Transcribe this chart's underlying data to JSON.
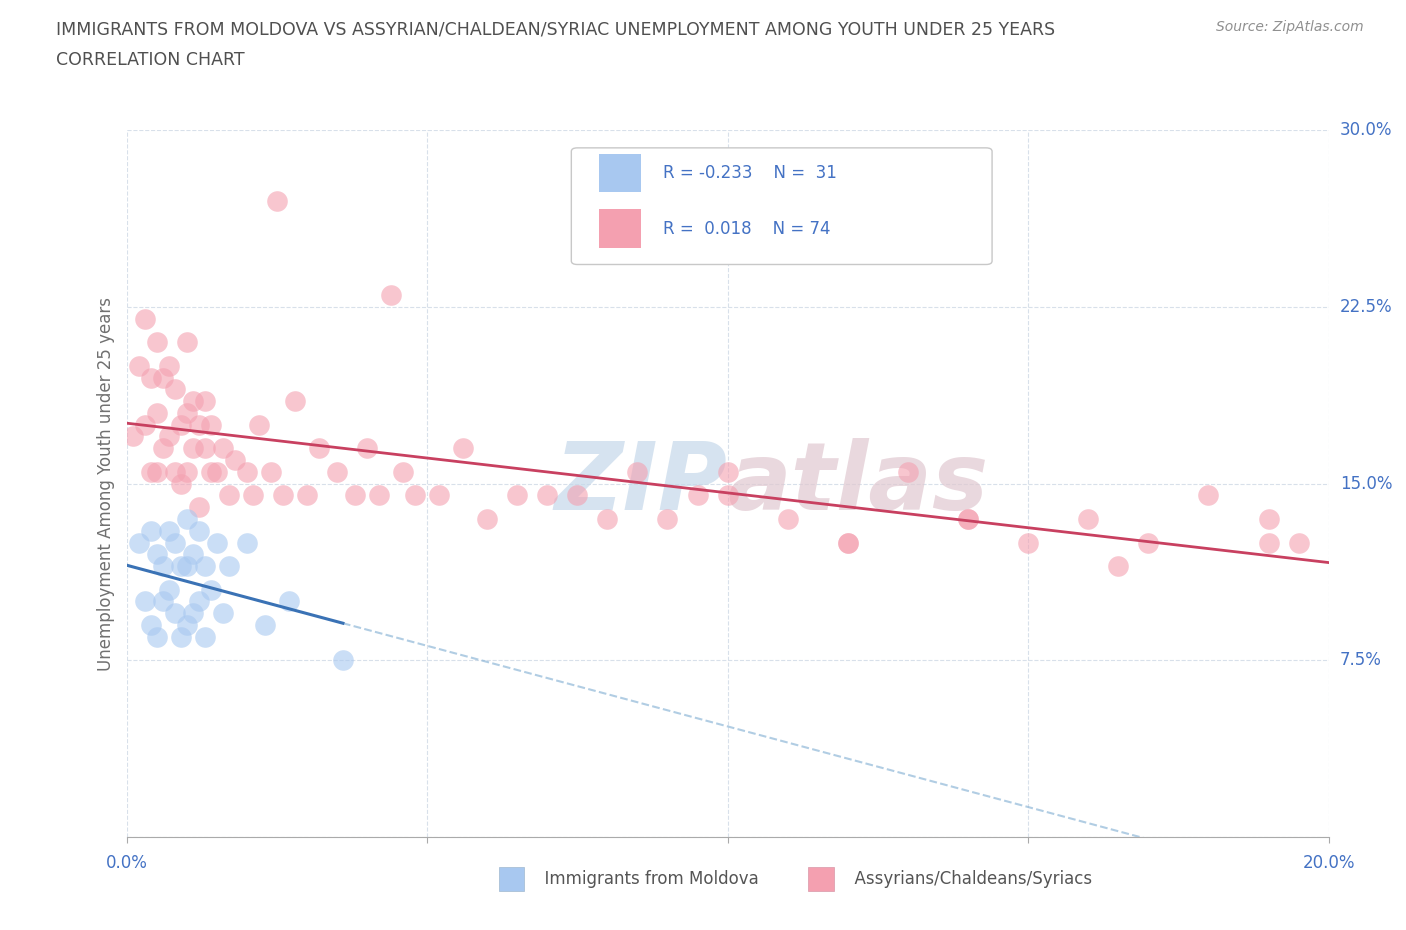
{
  "title_line1": "IMMIGRANTS FROM MOLDOVA VS ASSYRIAN/CHALDEAN/SYRIAC UNEMPLOYMENT AMONG YOUTH UNDER 25 YEARS",
  "title_line2": "CORRELATION CHART",
  "source_text": "Source: ZipAtlas.com",
  "ylabel": "Unemployment Among Youth under 25 years",
  "xlim": [
    0.0,
    0.2
  ],
  "ylim": [
    0.0,
    0.3
  ],
  "xticks": [
    0.0,
    0.05,
    0.1,
    0.15,
    0.2
  ],
  "yticks": [
    0.0,
    0.075,
    0.15,
    0.225,
    0.3
  ],
  "color_moldova": "#a8c8f0",
  "color_assyrian": "#f4a0b0",
  "color_moldova_line": "#3a72b5",
  "color_assyrian_line": "#c84060",
  "color_moldova_dash": "#90b8d8",
  "title_color": "#505050",
  "tick_color": "#4472c4",
  "grid_color": "#e0e8f0",
  "source_color": "#909090",
  "ylabel_color": "#707070",
  "moldova_x": [
    0.002,
    0.003,
    0.004,
    0.004,
    0.005,
    0.005,
    0.006,
    0.006,
    0.007,
    0.007,
    0.008,
    0.008,
    0.009,
    0.009,
    0.01,
    0.01,
    0.01,
    0.011,
    0.011,
    0.012,
    0.012,
    0.013,
    0.013,
    0.014,
    0.015,
    0.016,
    0.017,
    0.02,
    0.023,
    0.027,
    0.036
  ],
  "moldova_y": [
    0.125,
    0.1,
    0.13,
    0.09,
    0.12,
    0.085,
    0.115,
    0.1,
    0.13,
    0.105,
    0.125,
    0.095,
    0.115,
    0.085,
    0.135,
    0.115,
    0.09,
    0.12,
    0.095,
    0.13,
    0.1,
    0.115,
    0.085,
    0.105,
    0.125,
    0.095,
    0.115,
    0.125,
    0.09,
    0.1,
    0.075
  ],
  "assyrian_x": [
    0.001,
    0.002,
    0.003,
    0.003,
    0.004,
    0.004,
    0.005,
    0.005,
    0.005,
    0.006,
    0.006,
    0.007,
    0.007,
    0.008,
    0.008,
    0.009,
    0.009,
    0.01,
    0.01,
    0.01,
    0.011,
    0.011,
    0.012,
    0.012,
    0.013,
    0.013,
    0.014,
    0.014,
    0.015,
    0.016,
    0.017,
    0.018,
    0.02,
    0.021,
    0.022,
    0.024,
    0.025,
    0.026,
    0.028,
    0.03,
    0.032,
    0.035,
    0.038,
    0.04,
    0.042,
    0.044,
    0.046,
    0.048,
    0.052,
    0.056,
    0.06,
    0.065,
    0.07,
    0.075,
    0.08,
    0.085,
    0.09,
    0.095,
    0.1,
    0.11,
    0.12,
    0.13,
    0.14,
    0.15,
    0.16,
    0.17,
    0.18,
    0.19,
    0.195,
    0.1,
    0.12,
    0.14,
    0.165,
    0.19
  ],
  "assyrian_y": [
    0.17,
    0.2,
    0.22,
    0.175,
    0.195,
    0.155,
    0.18,
    0.155,
    0.21,
    0.165,
    0.195,
    0.2,
    0.17,
    0.19,
    0.155,
    0.175,
    0.15,
    0.18,
    0.155,
    0.21,
    0.165,
    0.185,
    0.175,
    0.14,
    0.165,
    0.185,
    0.155,
    0.175,
    0.155,
    0.165,
    0.145,
    0.16,
    0.155,
    0.145,
    0.175,
    0.155,
    0.27,
    0.145,
    0.185,
    0.145,
    0.165,
    0.155,
    0.145,
    0.165,
    0.145,
    0.23,
    0.155,
    0.145,
    0.145,
    0.165,
    0.135,
    0.145,
    0.145,
    0.145,
    0.135,
    0.155,
    0.135,
    0.145,
    0.145,
    0.135,
    0.125,
    0.155,
    0.135,
    0.125,
    0.135,
    0.125,
    0.145,
    0.135,
    0.125,
    0.155,
    0.125,
    0.135,
    0.115,
    0.125
  ]
}
